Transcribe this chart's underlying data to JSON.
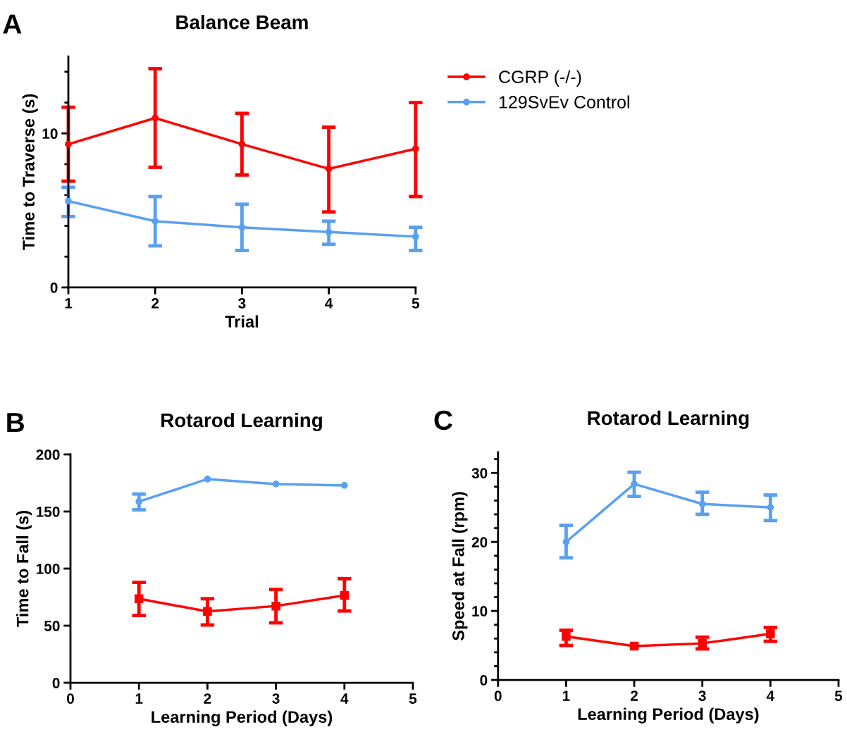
{
  "chart_data": [
    {
      "type": "line",
      "title": "Balance Beam",
      "xlabel": "Trial",
      "ylabel": "Time to Traverse (s)",
      "annotations": [
        "A"
      ],
      "x": [
        1,
        2,
        3,
        4,
        5
      ],
      "xlim": [
        1,
        5
      ],
      "xticks": [
        1,
        2,
        3,
        4,
        5
      ],
      "ylim": [
        0,
        15
      ],
      "yticks": [
        0,
        {
          "value": 2,
          "label": null
        },
        {
          "value": 4,
          "label": null
        },
        {
          "value": 6,
          "label": null
        },
        {
          "value": 8,
          "label": null
        },
        10,
        {
          "value": 12,
          "label": null
        },
        {
          "value": 14,
          "label": null
        }
      ],
      "legend": "right",
      "grid": false,
      "marker": "circle",
      "line_style": "solid",
      "series": [
        {
          "name": "CGRP (-/-)",
          "color": "#ff0000",
          "values": [
            9.3,
            11.0,
            9.3,
            7.7,
            9.0
          ],
          "errors": [
            [
              6.9,
              11.7
            ],
            [
              7.8,
              14.2
            ],
            [
              7.3,
              11.3
            ],
            [
              4.9,
              10.4
            ],
            [
              5.9,
              12.0
            ]
          ]
        },
        {
          "name": "129SvEv Control",
          "color": "#5aa0f0",
          "values": [
            5.6,
            4.3,
            3.9,
            3.6,
            3.3
          ],
          "errors": [
            [
              4.6,
              6.5
            ],
            [
              2.7,
              5.9
            ],
            [
              2.4,
              5.4
            ],
            [
              2.8,
              4.3
            ],
            [
              2.4,
              3.9
            ]
          ]
        }
      ]
    },
    {
      "type": "line",
      "title": "Rotarod Learning",
      "xlabel": "Learning Period (Days)",
      "ylabel": "Time to Fall (s)",
      "annotations": [
        "B"
      ],
      "x": [
        1,
        2,
        3,
        4
      ],
      "xlim": [
        0,
        5
      ],
      "xticks": [
        0,
        1,
        2,
        3,
        4,
        5
      ],
      "ylim": [
        0,
        200
      ],
      "yticks": [
        0,
        50,
        100,
        150,
        200
      ],
      "grid": false,
      "line_style": "solid",
      "series": [
        {
          "color": "#ff0000",
          "marker": "square",
          "values": [
            73.6,
            62.5,
            67.2,
            76.5
          ],
          "errors": [
            [
              58.9,
              87.9
            ],
            [
              50.6,
              73.6
            ],
            [
              52.5,
              81.7
            ],
            [
              62.9,
              91.2
            ]
          ]
        },
        {
          "color": "#5aa0f0",
          "marker": "circle",
          "values": [
            158.7,
            178.4,
            174.1,
            172.9
          ],
          "errors": [
            [
              151.5,
              165.3
            ],
            null,
            null,
            null
          ]
        }
      ]
    },
    {
      "type": "line",
      "title": "Rotarod Learning",
      "xlabel": "Learning Period (Days)",
      "ylabel": "Speed at Fall (rpm)",
      "annotations": [
        "C"
      ],
      "x": [
        1,
        2,
        3,
        4
      ],
      "xlim": [
        0,
        5
      ],
      "xticks": [
        0,
        1,
        2,
        3,
        4,
        5
      ],
      "ylim": [
        0,
        33
      ],
      "yticks": [
        0,
        {
          "value": 2,
          "label": null
        },
        {
          "value": 4,
          "label": null
        },
        {
          "value": 6,
          "label": null
        },
        {
          "value": 8,
          "label": null
        },
        10,
        {
          "value": 12,
          "label": null
        },
        {
          "value": 14,
          "label": null
        },
        {
          "value": 16,
          "label": null
        },
        {
          "value": 18,
          "label": null
        },
        20,
        {
          "value": 22,
          "label": null
        },
        {
          "value": 24,
          "label": null
        },
        {
          "value": 26,
          "label": null
        },
        {
          "value": 28,
          "label": null
        },
        30,
        {
          "value": 32,
          "label": null
        }
      ],
      "grid": false,
      "line_style": "solid",
      "series": [
        {
          "color": "#ff0000",
          "marker": "square",
          "values": [
            6.3,
            4.9,
            5.3,
            6.7
          ],
          "errors": [
            [
              5.0,
              7.2
            ],
            null,
            [
              4.5,
              6.2
            ],
            [
              5.6,
              7.6
            ]
          ]
        },
        {
          "color": "#5aa0f0",
          "marker": "circle",
          "values": [
            20.0,
            28.4,
            25.5,
            25.0
          ],
          "errors": [
            [
              17.7,
              22.4
            ],
            [
              26.6,
              30.1
            ],
            [
              24.0,
              27.2
            ],
            [
              23.1,
              26.8
            ]
          ]
        }
      ]
    }
  ]
}
